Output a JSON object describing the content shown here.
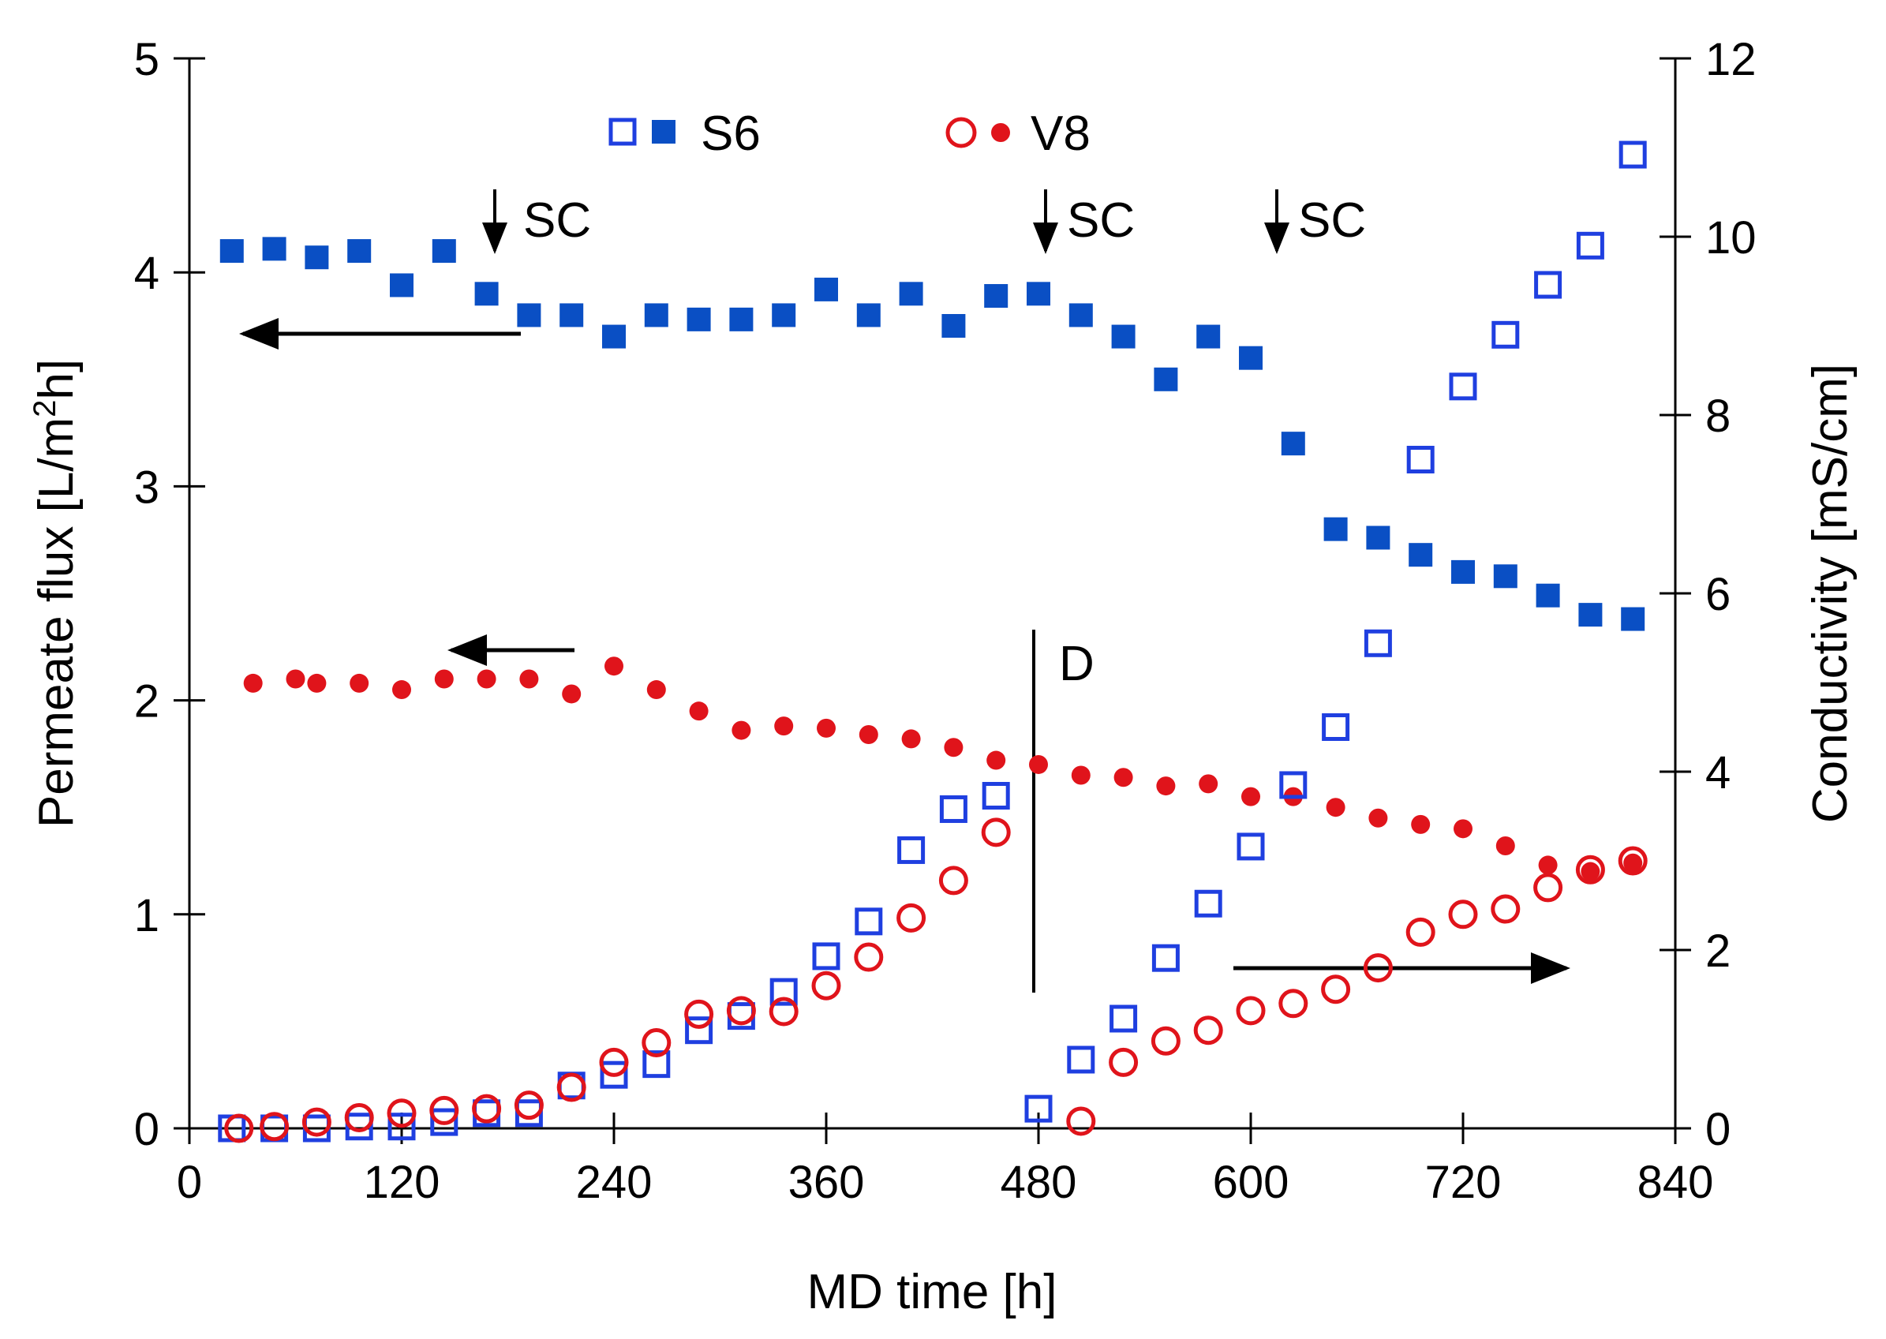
{
  "chart_data": {
    "type": "scatter",
    "xlabel": "MD time [h]",
    "ylabel_left": "Permeate flux [L/m",
    "ylabel_left_sup": "2",
    "ylabel_left_end": "h]",
    "ylabel_right": "Conductivity [mS/cm]",
    "xlim": [
      0,
      840
    ],
    "ylim_left": [
      0,
      5
    ],
    "ylim_right": [
      0,
      12
    ],
    "xticks": [
      0,
      120,
      240,
      360,
      480,
      600,
      720,
      840
    ],
    "yticks_left": [
      0,
      1,
      2,
      3,
      4,
      5
    ],
    "yticks_right": [
      0,
      2,
      4,
      6,
      8,
      10,
      12
    ],
    "legend": {
      "s6_label": "S6",
      "v8_label": "V8",
      "position": "top-center"
    },
    "annotations": {
      "sc_label": "SC",
      "sc_times": [
        176,
        487,
        618
      ],
      "d_label": "D",
      "d_time": 480
    },
    "colors": {
      "s6": "#0a4fc4",
      "s6_open": "#1f3fe0",
      "v8": "#e0141b"
    },
    "series": [
      {
        "name": "S6 flux",
        "axis": "left",
        "marker": "filled-square",
        "x": [
          24,
          48,
          72,
          96,
          120,
          144,
          168,
          192,
          216,
          240,
          264,
          288,
          312,
          336,
          360,
          384,
          408,
          432,
          456,
          480,
          504,
          528,
          552,
          576,
          600,
          624,
          648,
          672,
          696,
          720,
          744,
          768,
          792,
          816
        ],
        "y": [
          4.1,
          4.11,
          4.07,
          4.1,
          3.94,
          4.1,
          3.9,
          3.8,
          3.8,
          3.7,
          3.8,
          3.78,
          3.78,
          3.8,
          3.92,
          3.8,
          3.9,
          3.75,
          3.89,
          3.9,
          3.8,
          3.7,
          3.5,
          3.7,
          3.6,
          3.2,
          2.8,
          2.76,
          2.68,
          2.6,
          2.58,
          2.49,
          2.4,
          2.38
        ]
      },
      {
        "name": "V8 flux",
        "axis": "left",
        "marker": "filled-circle",
        "x": [
          36,
          60,
          72,
          96,
          120,
          144,
          168,
          192,
          216,
          240,
          264,
          288,
          312,
          336,
          360,
          384,
          408,
          432,
          456,
          480,
          504,
          528,
          552,
          576,
          600,
          624,
          648,
          672,
          696,
          720,
          744,
          768,
          792,
          816
        ],
        "y": [
          2.08,
          2.1,
          2.08,
          2.08,
          2.05,
          2.1,
          2.1,
          2.1,
          2.03,
          2.16,
          2.05,
          1.95,
          1.86,
          1.88,
          1.87,
          1.84,
          1.82,
          1.78,
          1.72,
          1.7,
          1.65,
          1.64,
          1.6,
          1.61,
          1.55,
          1.55,
          1.5,
          1.45,
          1.42,
          1.4,
          1.32,
          1.23,
          1.2,
          1.24
        ]
      },
      {
        "name": "S6 conductivity",
        "axis": "right",
        "marker": "open-square",
        "x": [
          24,
          48,
          72,
          96,
          120,
          144,
          168,
          192,
          216,
          240,
          264,
          288,
          312,
          336,
          360,
          384,
          408,
          432,
          456,
          480,
          504,
          528,
          552,
          576,
          600,
          624,
          648,
          672,
          696,
          720,
          744,
          768,
          792,
          816
        ],
        "y": [
          0.0,
          0.0,
          0.0,
          0.02,
          0.02,
          0.07,
          0.17,
          0.17,
          0.48,
          0.6,
          0.72,
          1.1,
          1.26,
          1.53,
          1.93,
          2.32,
          3.12,
          3.58,
          3.73,
          0.22,
          0.77,
          1.23,
          1.91,
          2.52,
          3.16,
          3.85,
          4.5,
          5.44,
          7.5,
          8.32,
          8.9,
          9.46,
          9.9,
          10.92
        ]
      },
      {
        "name": "V8 conductivity",
        "axis": "right",
        "marker": "open-circle",
        "x": [
          28,
          48,
          72,
          96,
          120,
          144,
          168,
          192,
          216,
          240,
          264,
          288,
          312,
          336,
          360,
          384,
          408,
          432,
          456,
          504,
          528,
          552,
          576,
          600,
          624,
          648,
          672,
          696,
          720,
          744,
          768,
          792,
          816
        ],
        "y": [
          0.0,
          0.02,
          0.07,
          0.12,
          0.17,
          0.2,
          0.22,
          0.26,
          0.46,
          0.74,
          0.96,
          1.28,
          1.32,
          1.31,
          1.6,
          1.92,
          2.36,
          2.78,
          3.32,
          0.08,
          0.74,
          0.98,
          1.1,
          1.32,
          1.4,
          1.56,
          1.8,
          2.2,
          2.4,
          2.46,
          2.7,
          2.9,
          3.0
        ]
      }
    ]
  }
}
